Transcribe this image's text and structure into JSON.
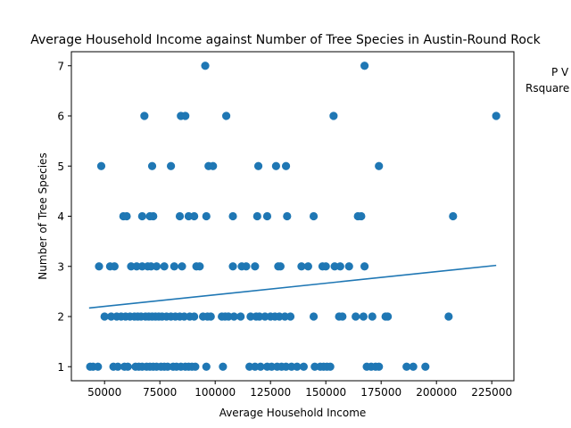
{
  "chart_data": {
    "type": "scatter",
    "title": "Average Household Income against Number of Tree Species in Austin-Round Rock",
    "xlabel": "Average Household Income",
    "ylabel": "Number of Tree Species",
    "xlim": [
      35000,
      235000
    ],
    "ylim": [
      0.72,
      7.28
    ],
    "xticks": [
      50000,
      75000,
      100000,
      125000,
      150000,
      175000,
      200000,
      225000
    ],
    "yticks": [
      1,
      2,
      3,
      4,
      5,
      6,
      7
    ],
    "annotation": [
      "P V",
      "Rsquare"
    ],
    "point_color": "#1f77b4",
    "line_color": "#1f77b4",
    "regression_line": {
      "x": [
        43000,
        227000
      ],
      "y": [
        2.17,
        3.02
      ]
    },
    "points": {
      "x": [
        43500,
        44800,
        47000,
        54000,
        56000,
        59000,
        60500,
        64000,
        65500,
        67000,
        69000,
        70500,
        72000,
        73500,
        75500,
        77000,
        78500,
        81000,
        82500,
        84500,
        86500,
        88000,
        89500,
        91000,
        96000,
        103500,
        115500,
        118000,
        120500,
        123500,
        125500,
        128000,
        130000,
        132000,
        134500,
        137000,
        140000,
        145000,
        147500,
        149000,
        150500,
        152000,
        168500,
        170500,
        172500,
        174000,
        186500,
        189500,
        195000,
        50000,
        53000,
        55500,
        57500,
        59500,
        61500,
        63500,
        65000,
        66500,
        68500,
        70000,
        71500,
        73000,
        74500,
        76000,
        78000,
        80000,
        82000,
        84000,
        86000,
        88500,
        90500,
        94500,
        96500,
        98000,
        103000,
        104500,
        106000,
        108500,
        111500,
        116000,
        118500,
        120000,
        122500,
        125000,
        127000,
        129000,
        131500,
        134000,
        144500,
        156000,
        157500,
        163500,
        167000,
        171000,
        177000,
        178000,
        205500,
        47500,
        52500,
        54500,
        62000,
        64500,
        67000,
        69500,
        71000,
        73500,
        77000,
        81500,
        85000,
        91500,
        93000,
        108000,
        112000,
        114000,
        118000,
        128500,
        129500,
        139000,
        142000,
        148500,
        150000,
        154000,
        156500,
        160500,
        167500,
        58500,
        60000,
        67000,
        70500,
        72000,
        84000,
        88000,
        90500,
        96000,
        108000,
        119000,
        123500,
        132500,
        144500,
        164500,
        166000,
        207500,
        48500,
        71500,
        80000,
        97000,
        99000,
        119500,
        127500,
        132000,
        174000,
        68000,
        84500,
        86500,
        105000,
        153500,
        227000,
        95500,
        167500
      ],
      "y": [
        1,
        1,
        1,
        1,
        1,
        1,
        1,
        1,
        1,
        1,
        1,
        1,
        1,
        1,
        1,
        1,
        1,
        1,
        1,
        1,
        1,
        1,
        1,
        1,
        1,
        1,
        1,
        1,
        1,
        1,
        1,
        1,
        1,
        1,
        1,
        1,
        1,
        1,
        1,
        1,
        1,
        1,
        1,
        1,
        1,
        1,
        1,
        1,
        1,
        2,
        2,
        2,
        2,
        2,
        2,
        2,
        2,
        2,
        2,
        2,
        2,
        2,
        2,
        2,
        2,
        2,
        2,
        2,
        2,
        2,
        2,
        2,
        2,
        2,
        2,
        2,
        2,
        2,
        2,
        2,
        2,
        2,
        2,
        2,
        2,
        2,
        2,
        2,
        2,
        2,
        2,
        2,
        2,
        2,
        2,
        2,
        2,
        3,
        3,
        3,
        3,
        3,
        3,
        3,
        3,
        3,
        3,
        3,
        3,
        3,
        3,
        3,
        3,
        3,
        3,
        3,
        3,
        3,
        3,
        3,
        3,
        3,
        3,
        3,
        3,
        4,
        4,
        4,
        4,
        4,
        4,
        4,
        4,
        4,
        4,
        4,
        4,
        4,
        4,
        4,
        4,
        4,
        5,
        5,
        5,
        5,
        5,
        5,
        5,
        5,
        5,
        6,
        6,
        6,
        6,
        6,
        6,
        7,
        7
      ]
    }
  }
}
